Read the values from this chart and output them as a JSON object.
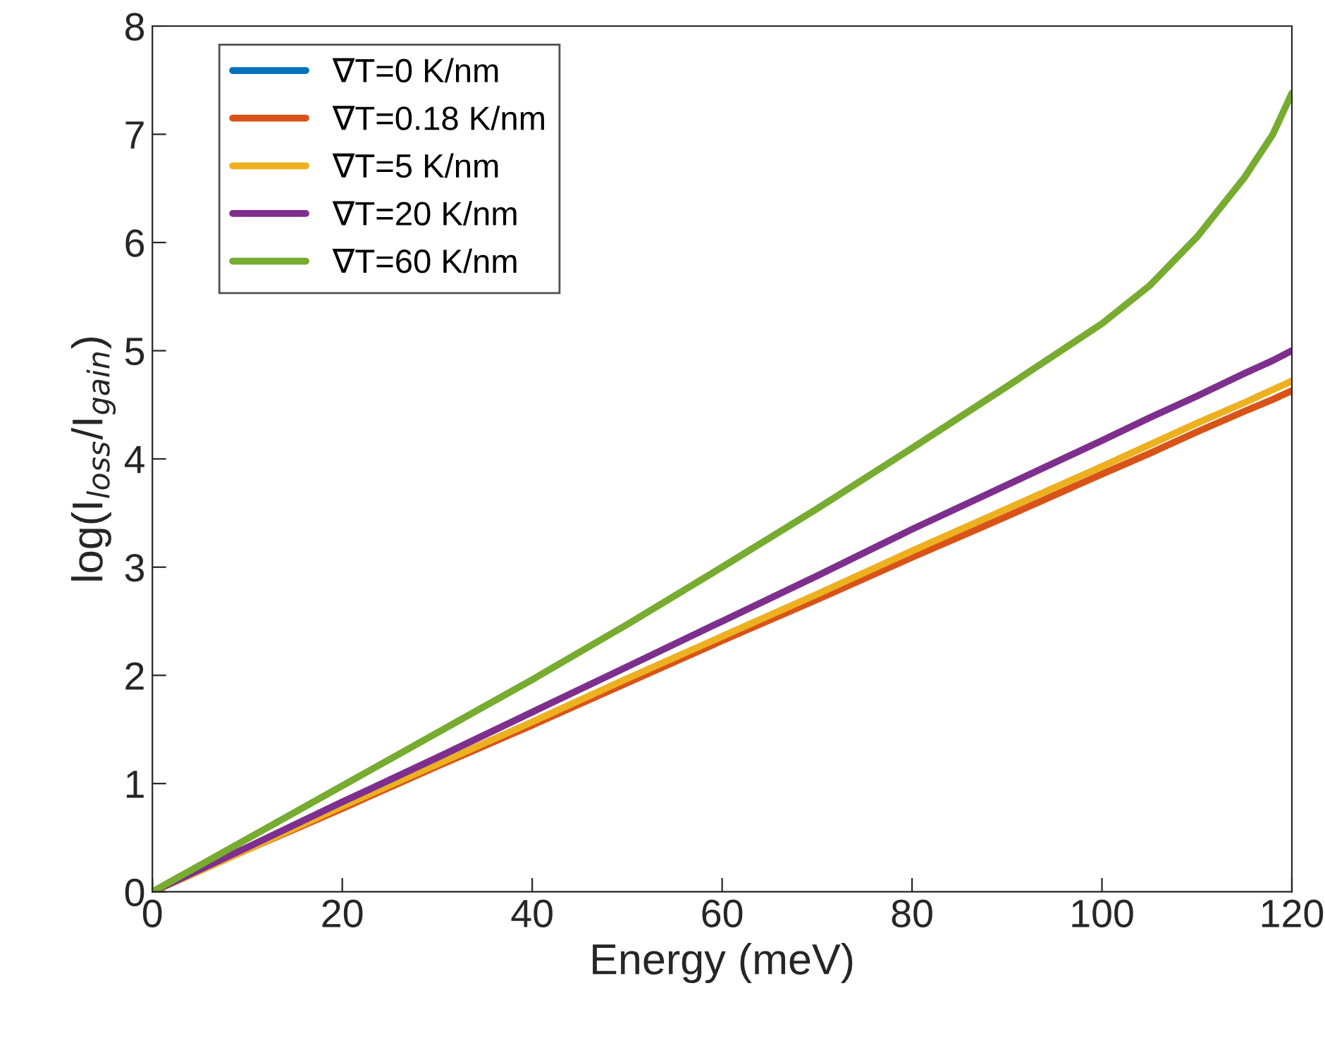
{
  "chart_data": {
    "type": "line",
    "xlabel": "Energy (meV)",
    "ylabel": "log(I$_{loss}$/I$_{gain}$)",
    "x": [
      0,
      10,
      20,
      30,
      40,
      50,
      60,
      70,
      80,
      90,
      100,
      105,
      110,
      115,
      118,
      120
    ],
    "series": [
      {
        "name": "∇T=0 K/nm",
        "color": "#0072bd",
        "values": [
          null,
          null,
          null,
          null,
          null,
          null,
          null,
          null,
          null,
          null,
          null,
          null,
          null,
          null,
          null,
          null
        ]
      },
      {
        "name": "∇T=0.18 K/nm",
        "color": "#d95319",
        "values": [
          0,
          0.39,
          0.77,
          1.16,
          1.54,
          1.93,
          2.32,
          2.7,
          3.09,
          3.47,
          3.86,
          4.05,
          4.25,
          4.44,
          4.55,
          4.63
        ]
      },
      {
        "name": "∇T=5 K/nm",
        "color": "#edb120",
        "values": [
          0,
          0.39,
          0.79,
          1.18,
          1.57,
          1.97,
          2.36,
          2.75,
          3.15,
          3.54,
          3.93,
          4.13,
          4.33,
          4.52,
          4.64,
          4.72
        ]
      },
      {
        "name": "∇T=20 K/nm",
        "color": "#7e2f8e",
        "values": [
          0,
          0.41,
          0.83,
          1.24,
          1.66,
          2.08,
          2.5,
          2.92,
          3.35,
          3.76,
          4.17,
          4.38,
          4.58,
          4.79,
          4.91,
          5.0
        ]
      },
      {
        "name": "∇T=60 K/nm",
        "color": "#77ac30",
        "values": [
          0,
          0.49,
          0.98,
          1.47,
          1.96,
          2.47,
          3.0,
          3.54,
          4.1,
          4.67,
          5.25,
          5.6,
          6.05,
          6.6,
          7.0,
          7.38
        ]
      }
    ],
    "xlim": [
      0,
      120
    ],
    "xticks": [
      0,
      20,
      40,
      60,
      80,
      100,
      120
    ],
    "ylim": [
      0,
      8
    ],
    "yticks": [
      0,
      1,
      2,
      3,
      4,
      5,
      6,
      7,
      8
    ],
    "grid": false,
    "legend": "top left",
    "line_style": "solid",
    "marker": "none"
  }
}
